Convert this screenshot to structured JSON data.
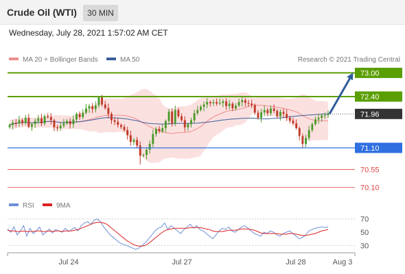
{
  "header": {
    "instrument": "Crude Oil (WTI)",
    "timeframe": "30 MIN"
  },
  "datetime": "Wednesday, July 28, 2021 1:57:02 AM CET",
  "colors": {
    "green": "#5a9e00",
    "blue": "#2f6fe0",
    "red": "#e04444",
    "arrow": "#2e5b9a",
    "candle_up": "#4a9a2a",
    "candle_down": "#c03a2a",
    "band": "#f7c6c6",
    "ma20": "#f08c8c",
    "ma50": "#3a5f9a",
    "rsi": "#6c8fd8",
    "rsi_ma": "#e02020"
  },
  "chart_data": [
    {
      "type": "candlestick",
      "legend": [
        {
          "name": "MA 20 + Bollinger Bands",
          "color": "#f08c8c"
        },
        {
          "name": "MA 50",
          "color": "#3a5f9a"
        }
      ],
      "credit": "Research © 2021 Trading Central",
      "ylim": [
        69.9,
        73.25
      ],
      "levels": [
        {
          "value": 73.0,
          "label": "73.00",
          "style": "resistance"
        },
        {
          "value": 72.4,
          "label": "72.40",
          "style": "resistance"
        },
        {
          "value": 71.96,
          "label": "71.96",
          "style": "last"
        },
        {
          "value": 71.1,
          "label": "71.10",
          "style": "support"
        },
        {
          "value": 70.55,
          "label": "70.55",
          "style": "thin-red"
        },
        {
          "value": 70.1,
          "label": "70.10",
          "style": "thin-red"
        }
      ],
      "arrow": {
        "from": 71.96,
        "to": 73.0
      },
      "closes": [
        71.68,
        71.74,
        71.72,
        71.8,
        71.73,
        71.86,
        71.64,
        71.7,
        71.78,
        71.85,
        71.72,
        71.9,
        71.88,
        71.8,
        71.62,
        71.6,
        71.66,
        71.72,
        71.78,
        71.7,
        71.82,
        71.96,
        71.88,
        71.99,
        72.1,
        72.16,
        72.08,
        72.18,
        72.38,
        72.2,
        72.11,
        71.96,
        71.8,
        71.76,
        71.68,
        71.63,
        71.55,
        71.42,
        71.25,
        71.3,
        71.16,
        70.9,
        70.92,
        71.05,
        71.2,
        71.45,
        71.58,
        71.52,
        71.6,
        71.78,
        72.02,
        71.72,
        72.06,
        71.9,
        71.8,
        71.62,
        71.7,
        71.8,
        71.98,
        72.06,
        72.14,
        72.2,
        72.26,
        72.23,
        72.26,
        72.22,
        72.24,
        72.28,
        72.16,
        72.22,
        72.1,
        72.17,
        72.26,
        72.31,
        72.24,
        72.22,
        72.18,
        71.99,
        71.86,
        72.0,
        72.06,
        71.98,
        72.1,
        72.04,
        71.9,
        72.01,
        71.96,
        71.86,
        71.79,
        71.72,
        71.6,
        71.4,
        71.2,
        71.35,
        71.55,
        71.7,
        71.82,
        71.86,
        71.92,
        71.93,
        71.96
      ]
    },
    {
      "type": "line",
      "legend": [
        {
          "name": "RSI",
          "color": "#6c8fd8"
        },
        {
          "name": "9MA",
          "color": "#e02020"
        }
      ],
      "ylim": [
        22,
        78
      ],
      "yticks": [
        70,
        50,
        30
      ],
      "dashed_levels": [
        70,
        30
      ],
      "x_labels": [
        "Jul 24",
        "Jul 27",
        "Jul 28",
        "Aug 3"
      ],
      "series": [
        {
          "name": "RSI",
          "values": [
            55,
            50,
            58,
            46,
            52,
            60,
            44,
            56,
            48,
            52,
            58,
            46,
            50,
            55,
            49,
            54,
            52,
            50,
            56,
            51,
            54,
            57,
            52,
            60,
            64,
            66,
            62,
            68,
            70,
            66,
            58,
            52,
            46,
            42,
            38,
            34,
            32,
            30,
            28,
            26,
            24,
            26,
            30,
            34,
            40,
            46,
            52,
            56,
            58,
            64,
            54,
            60,
            56,
            52,
            48,
            54,
            58,
            62,
            56,
            60,
            54,
            52,
            48,
            44,
            40,
            46,
            52,
            56,
            54,
            58,
            52,
            50,
            54,
            58,
            60,
            56,
            52,
            48,
            46,
            44,
            50,
            48,
            52,
            50,
            46,
            44,
            48,
            50,
            52,
            48,
            44,
            40,
            42,
            46,
            52,
            54,
            56,
            57,
            58,
            57,
            58
          ]
        },
        {
          "name": "9MA",
          "values": [
            53,
            52,
            52,
            51,
            51,
            52,
            51,
            51,
            51,
            52,
            52,
            51,
            51,
            52,
            51,
            52,
            52,
            51,
            52,
            52,
            52,
            53,
            54,
            56,
            58,
            60,
            62,
            64,
            65,
            65,
            64,
            62,
            58,
            54,
            50,
            46,
            42,
            38,
            35,
            32,
            30,
            29,
            29,
            30,
            33,
            37,
            41,
            45,
            49,
            52,
            54,
            55,
            56,
            56,
            56,
            56,
            56,
            57,
            57,
            57,
            57,
            56,
            55,
            54,
            52,
            51,
            51,
            51,
            52,
            53,
            53,
            53,
            54,
            55,
            55,
            55,
            54,
            53,
            51,
            49,
            48,
            48,
            48,
            48,
            48,
            47,
            47,
            47,
            48,
            48,
            47,
            46,
            45,
            45,
            46,
            47,
            48,
            50,
            52,
            53,
            54
          ]
        }
      ]
    }
  ]
}
